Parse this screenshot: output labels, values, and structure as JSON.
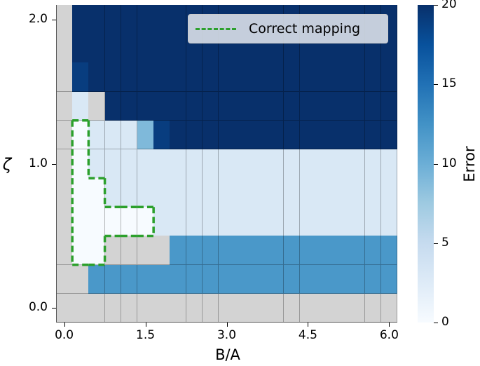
{
  "chart_data": {
    "type": "heatmap",
    "title": "",
    "xlabel": "B/A",
    "ylabel": "ζ",
    "colorbar": {
      "label": "Error",
      "ticks": [
        0,
        5,
        10,
        15,
        20
      ],
      "range": [
        0,
        20
      ],
      "colormap": "Blues"
    },
    "x_tick_labels": [
      "0.0",
      "1.5",
      "3.0",
      "4.5",
      "6.0"
    ],
    "y_tick_labels": [
      "2.0",
      "1.0",
      "0.0"
    ],
    "x_values": [
      0.0,
      0.3,
      0.6,
      0.9,
      1.2,
      1.5,
      1.8,
      2.1,
      2.4,
      2.7,
      3.0,
      3.3,
      3.6,
      3.9,
      4.2,
      4.5,
      4.8,
      5.1,
      5.4,
      5.7,
      6.0
    ],
    "y_values_top_to_bottom": [
      2.0,
      1.8,
      1.6,
      1.4,
      1.2,
      1.0,
      0.8,
      0.6,
      0.4,
      0.2,
      0.0
    ],
    "values": [
      [
        null,
        20,
        20,
        20,
        20,
        20,
        20,
        20,
        20,
        20,
        20,
        20,
        20,
        20,
        20,
        20,
        20,
        20,
        20,
        20,
        20
      ],
      [
        null,
        20,
        20,
        20,
        20,
        20,
        20,
        20,
        20,
        20,
        20,
        20,
        20,
        20,
        20,
        20,
        20,
        20,
        20,
        20,
        20
      ],
      [
        null,
        19,
        20,
        20,
        20,
        20,
        20,
        20,
        20,
        20,
        20,
        20,
        20,
        20,
        20,
        20,
        20,
        20,
        20,
        20,
        20
      ],
      [
        null,
        3,
        null,
        20,
        20,
        20,
        20,
        20,
        20,
        20,
        20,
        20,
        20,
        20,
        20,
        20,
        20,
        20,
        20,
        20,
        20
      ],
      [
        null,
        0,
        3,
        3,
        3,
        9,
        19,
        20,
        20,
        20,
        20,
        20,
        20,
        20,
        20,
        20,
        20,
        20,
        20,
        20,
        20
      ],
      [
        null,
        0,
        3,
        3,
        3,
        3,
        3,
        3,
        3,
        3,
        3,
        3,
        3,
        3,
        3,
        3,
        3,
        3,
        3,
        3,
        3
      ],
      [
        null,
        0,
        0,
        3,
        3,
        3,
        3,
        3,
        3,
        3,
        3,
        3,
        3,
        3,
        3,
        3,
        3,
        3,
        3,
        3,
        3
      ],
      [
        null,
        0,
        0,
        0,
        0,
        0,
        3,
        3,
        3,
        3,
        3,
        3,
        3,
        3,
        3,
        3,
        3,
        3,
        3,
        3,
        3
      ],
      [
        null,
        0,
        0,
        null,
        null,
        null,
        null,
        12,
        12,
        12,
        12,
        12,
        12,
        12,
        12,
        12,
        12,
        12,
        12,
        12,
        12
      ],
      [
        null,
        null,
        12,
        12,
        12,
        12,
        12,
        12,
        12,
        12,
        12,
        12,
        12,
        12,
        12,
        12,
        12,
        12,
        12,
        12,
        12
      ],
      [
        null,
        null,
        null,
        null,
        null,
        null,
        null,
        null,
        null,
        null,
        null,
        null,
        null,
        null,
        null,
        null,
        null,
        null,
        null,
        null,
        null
      ]
    ],
    "missing_color": "#d3d3d3",
    "legend": {
      "position": "upper right",
      "entries": [
        {
          "label": "Correct mapping",
          "style": "dashed",
          "color": "#2ca02c"
        }
      ]
    },
    "annotation_region": "Correct mapping outline around cells with zero error"
  }
}
